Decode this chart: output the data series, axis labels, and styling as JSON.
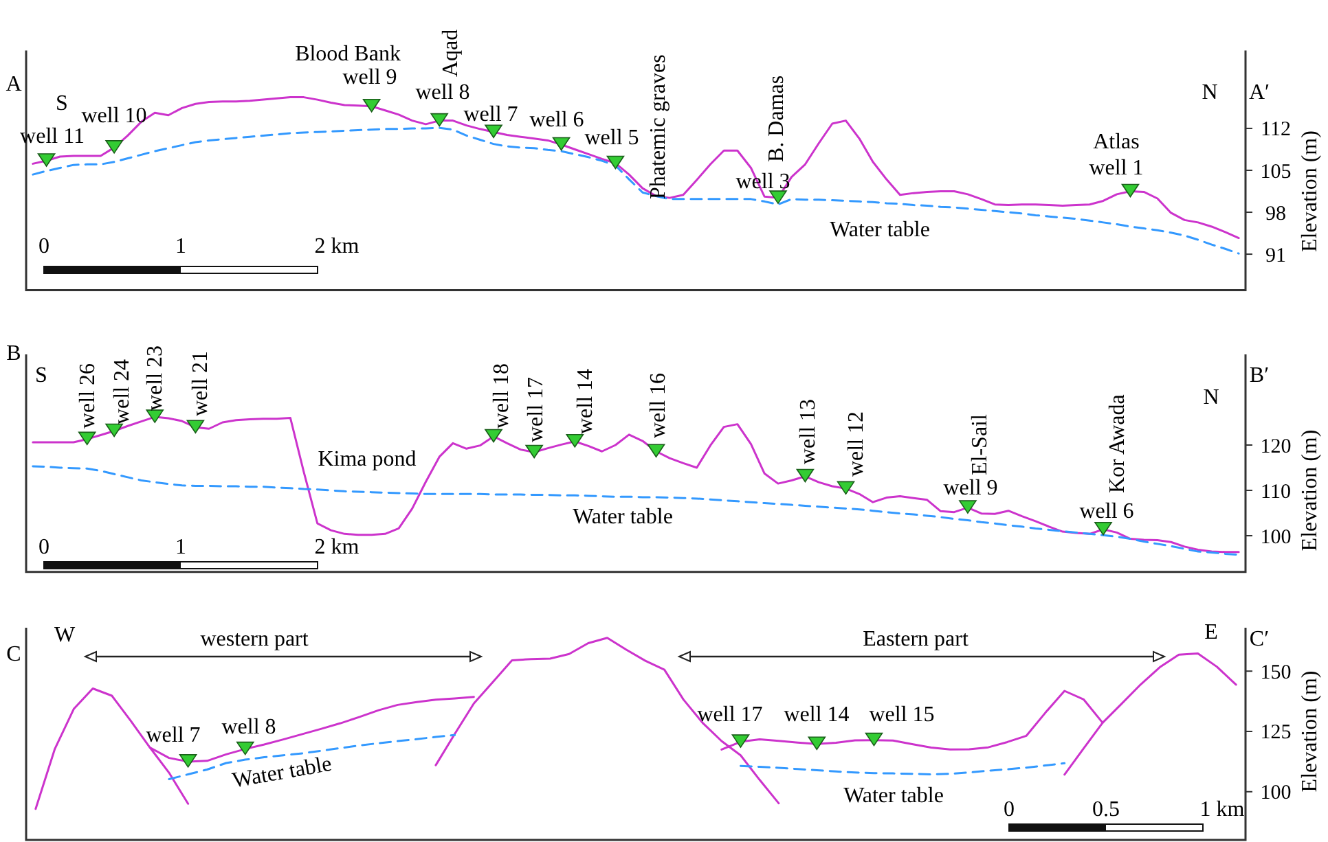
{
  "chart_data": [
    {
      "type": "line",
      "categories": [
        null,
        null,
        null,
        null,
        null,
        null,
        null,
        null,
        null,
        null,
        null,
        null,
        null,
        null,
        null,
        null,
        null,
        null,
        null,
        null,
        null,
        null,
        null,
        null,
        null,
        null,
        null,
        null,
        null,
        null,
        null,
        null,
        null,
        null,
        null,
        null,
        null,
        null,
        null,
        null,
        null,
        null,
        null,
        null,
        null,
        null,
        null,
        null,
        null,
        null,
        null,
        null,
        null,
        null,
        null,
        null,
        null,
        null,
        null,
        null,
        null,
        null,
        null,
        null,
        null,
        null,
        null,
        null,
        null,
        null,
        null,
        null,
        null,
        null,
        null,
        null,
        null,
        null,
        null,
        null,
        null,
        null,
        null,
        null,
        null,
        null,
        null,
        null,
        null,
        null
      ],
      "ylim": [
        85,
        125
      ],
      "yticks": [
        91,
        98,
        105,
        112
      ],
      "ylabel": "Elevation (m)",
      "tick_labels": "y",
      "series": [
        {
          "type": "line",
          "color": "#cc33cc",
          "line_style": "solid",
          "values": [
            106.1,
            106.6,
            107.3,
            107.4,
            107.4,
            107.4,
            108.8,
            110.8,
            113.1,
            114.6,
            114.2,
            115.4,
            116.1,
            116.4,
            116.5,
            116.5,
            116.6,
            116.8,
            117.0,
            117.2,
            117.2,
            116.8,
            116.3,
            115.9,
            115.8,
            115.7,
            115.0,
            114.3,
            113.3,
            112.7,
            113.3,
            113.3,
            112.5,
            111.9,
            111.4,
            110.9,
            110.6,
            110.3,
            110.0,
            109.3,
            108.5,
            107.7,
            106.9,
            106.2,
            104.3,
            102.0,
            100.7,
            100.4,
            100.9,
            103.4,
            106.0,
            108.3,
            108.3,
            105.4,
            100.6,
            100.4,
            103.9,
            106.0,
            109.5,
            112.8,
            113.3,
            110.3,
            106.4,
            103.5,
            100.9,
            101.2,
            101.4,
            101.5,
            101.5,
            101.0,
            100.2,
            99.3,
            99.2,
            99.3,
            99.3,
            99.2,
            99.1,
            99.2,
            99.3,
            99.9,
            101.0,
            101.5,
            101.4,
            100.3,
            97.9,
            96.7,
            96.3,
            95.6,
            94.7,
            93.7
          ]
        },
        {
          "type": "line",
          "color": "#3399ff",
          "line_style": "dashed",
          "values": [
            104.3,
            104.9,
            105.4,
            105.9,
            106.0,
            106.0,
            106.4,
            107.0,
            107.6,
            108.2,
            108.7,
            109.2,
            109.7,
            110.0,
            110.2,
            110.4,
            110.6,
            110.8,
            111.0,
            111.2,
            111.3,
            111.4,
            111.5,
            111.6,
            111.7,
            111.8,
            111.9,
            111.9,
            112.0,
            112.0,
            112.1,
            111.8,
            110.8,
            110.1,
            109.4,
            109.0,
            108.8,
            108.7,
            108.4,
            108.2,
            107.7,
            107.2,
            106.6,
            105.8,
            103.5,
            101.3,
            100.7,
            100.2,
            100.2,
            100.2,
            100.2,
            100.2,
            100.2,
            100.2,
            99.8,
            99.3,
            100.2,
            100.1,
            100.1,
            100.0,
            99.9,
            99.8,
            99.7,
            99.5,
            99.4,
            99.2,
            99.1,
            98.9,
            98.8,
            98.6,
            98.4,
            98.2,
            98.0,
            97.8,
            97.5,
            97.3,
            97.1,
            96.9,
            96.6,
            96.3,
            96.0,
            95.6,
            95.3,
            95.0,
            94.6,
            94.1,
            93.4,
            92.6,
            91.9,
            91.1
          ]
        },
        {
          "type": "scatter",
          "color": "#33cc33",
          "marker": "triangle",
          "values": [
            null,
            106.6,
            null,
            null,
            null,
            null,
            108.8,
            null,
            null,
            null,
            null,
            null,
            null,
            null,
            null,
            null,
            null,
            null,
            null,
            null,
            null,
            null,
            null,
            null,
            null,
            115.7,
            null,
            null,
            null,
            null,
            113.3,
            null,
            null,
            null,
            111.4,
            null,
            null,
            null,
            null,
            109.3,
            null,
            null,
            null,
            106.2,
            null,
            null,
            null,
            null,
            null,
            null,
            null,
            null,
            null,
            null,
            null,
            100.4,
            null,
            null,
            null,
            null,
            null,
            null,
            null,
            null,
            null,
            null,
            null,
            null,
            null,
            null,
            null,
            null,
            null,
            null,
            null,
            null,
            null,
            null,
            null,
            null,
            null,
            101.5,
            null,
            null,
            null,
            null,
            null,
            null,
            null,
            null
          ]
        }
      ],
      "annotations": [
        "A",
        "S",
        "well 10",
        "well 11",
        "Blood Bank",
        "well 9",
        "Aqad",
        "well 8",
        "well 7",
        "well 6",
        "well 5",
        "Phatemic graves",
        "B. Damas",
        "well 3",
        "Water table",
        "Atlas",
        "well 1",
        "N",
        "A′",
        "0",
        "1",
        "2 km"
      ]
    },
    {
      "type": "line",
      "categories": [
        null,
        null,
        null,
        null,
        null,
        null,
        null,
        null,
        null,
        null,
        null,
        null,
        null,
        null,
        null,
        null,
        null,
        null,
        null,
        null,
        null,
        null,
        null,
        null,
        null,
        null,
        null,
        null,
        null,
        null,
        null,
        null,
        null,
        null,
        null,
        null,
        null,
        null,
        null,
        null,
        null,
        null,
        null,
        null,
        null,
        null,
        null,
        null,
        null,
        null,
        null,
        null,
        null,
        null,
        null,
        null,
        null,
        null,
        null,
        null,
        null,
        null,
        null,
        null,
        null,
        null,
        null,
        null,
        null,
        null,
        null,
        null,
        null,
        null,
        null,
        null,
        null,
        null,
        null,
        null,
        null,
        null,
        null,
        null,
        null,
        null,
        null,
        null,
        null,
        null
      ],
      "ylim": [
        92,
        140
      ],
      "yticks": [
        100,
        110,
        120
      ],
      "ylabel": "Elevation (m)",
      "tick_labels": "y",
      "series": [
        {
          "type": "line",
          "color": "#cc33cc",
          "line_style": "solid",
          "values": [
            120.6,
            120.6,
            120.6,
            120.6,
            121.3,
            122.2,
            123.1,
            124.2,
            125.2,
            126.2,
            125.9,
            125.3,
            123.9,
            123.6,
            125.0,
            125.5,
            125.7,
            125.8,
            125.8,
            126.0,
            114.0,
            102.7,
            101.2,
            100.4,
            100.2,
            100.2,
            100.4,
            101.6,
            106.0,
            111.9,
            117.4,
            120.4,
            119.2,
            119.9,
            121.9,
            120.4,
            119.0,
            118.4,
            119.3,
            120.1,
            120.8,
            119.8,
            118.6,
            120.0,
            122.3,
            120.9,
            118.6,
            117.1,
            116.0,
            115.0,
            119.9,
            124.0,
            124.6,
            120.2,
            113.7,
            111.5,
            112.2,
            113.1,
            111.8,
            110.9,
            110.4,
            109.2,
            107.4,
            108.4,
            108.7,
            108.3,
            107.9,
            105.4,
            105.2,
            106.2,
            104.9,
            104.8,
            105.5,
            104.3,
            103.2,
            102.0,
            100.9,
            100.6,
            100.4,
            101.4,
            100.7,
            99.3,
            99.1,
            99.0,
            98.6,
            97.6,
            96.9,
            96.5,
            96.4,
            96.4
          ]
        },
        {
          "type": "line",
          "color": "#3399ff",
          "line_style": "dashed",
          "values": [
            115.3,
            115.2,
            115.0,
            114.9,
            114.8,
            114.3,
            113.6,
            112.9,
            112.2,
            111.8,
            111.4,
            111.1,
            111.0,
            111.0,
            110.9,
            110.9,
            110.8,
            110.8,
            110.6,
            110.5,
            110.3,
            110.2,
            110.0,
            109.8,
            109.7,
            109.6,
            109.5,
            109.4,
            109.3,
            109.2,
            109.2,
            109.2,
            109.2,
            109.2,
            109.1,
            109.1,
            109.1,
            109.0,
            109.0,
            108.9,
            108.9,
            108.8,
            108.7,
            108.6,
            108.6,
            108.5,
            108.5,
            108.4,
            108.3,
            108.2,
            108.0,
            107.8,
            107.6,
            107.4,
            107.2,
            107.0,
            106.8,
            106.6,
            106.4,
            106.2,
            106.0,
            105.8,
            105.5,
            105.2,
            104.9,
            104.7,
            104.4,
            104.1,
            103.7,
            103.4,
            103.0,
            102.7,
            102.3,
            102.0,
            101.6,
            101.3,
            101.0,
            100.7,
            100.4,
            100.1,
            99.8,
            99.3,
            98.7,
            98.2,
            97.7,
            97.1,
            96.5,
            96.3,
            96.0,
            95.8
          ]
        },
        {
          "type": "scatter",
          "color": "#33cc33",
          "marker": "triangle",
          "values": [
            null,
            null,
            null,
            null,
            121.3,
            null,
            123.1,
            null,
            null,
            126.2,
            null,
            null,
            123.9,
            null,
            null,
            null,
            null,
            null,
            null,
            null,
            null,
            null,
            null,
            null,
            null,
            null,
            null,
            null,
            null,
            null,
            null,
            null,
            null,
            null,
            121.9,
            null,
            null,
            118.4,
            null,
            null,
            120.8,
            null,
            null,
            null,
            null,
            null,
            118.6,
            null,
            null,
            null,
            null,
            null,
            null,
            null,
            null,
            null,
            null,
            113.1,
            null,
            null,
            110.4,
            null,
            null,
            null,
            null,
            null,
            null,
            null,
            null,
            106.2,
            null,
            null,
            null,
            null,
            null,
            null,
            null,
            null,
            null,
            101.4,
            null,
            null,
            null,
            null,
            null,
            null,
            null,
            null,
            null,
            null
          ]
        }
      ],
      "annotations": [
        "B",
        "S",
        "well 26",
        "well 24",
        "well 23",
        "well 21",
        "Kima pond",
        "well 18",
        "well 17",
        "well 14",
        "well 16",
        "well 13",
        "well 12",
        "Water table",
        "El-Sail",
        "well 9",
        "Kor Awada",
        "well 6",
        "N",
        "B′",
        "0",
        "1",
        "2 km"
      ]
    },
    {
      "type": "line",
      "categories": [
        null,
        null,
        null,
        null,
        null,
        null,
        null,
        null,
        null,
        null,
        null,
        null,
        null,
        null,
        null,
        null,
        null,
        null,
        null,
        null,
        null,
        null,
        null,
        null,
        null,
        null,
        null,
        null,
        null,
        null,
        null,
        null,
        null,
        null,
        null,
        null,
        null,
        null,
        null,
        null,
        null,
        null,
        null,
        null,
        null,
        null,
        null,
        null,
        null,
        null,
        null,
        null,
        null,
        null,
        null,
        null,
        null,
        null,
        null,
        null,
        null,
        null,
        null,
        null
      ],
      "ylim": [
        80,
        168
      ],
      "yticks": [
        100,
        125,
        150
      ],
      "ylabel": "Elevation (m)",
      "tick_labels": "y",
      "series": [
        {
          "type": "line",
          "color": "#cc33cc",
          "line_style": "solid",
          "values": [
            92.9,
            117.6,
            134.3,
            142.8,
            139.8,
            129.3,
            118.3,
            114.0,
            112.5,
            112.8,
            115.5,
            117.7,
            119.6,
            121.7,
            123.9,
            126.1,
            128.4,
            131.0,
            133.8,
            136.0,
            137.2,
            138.2,
            138.7,
            139.3,
            null,
            null,
            null,
            null,
            null,
            null,
            null,
            null,
            null,
            null,
            null,
            null,
            null,
            null,
            null,
            null,
            null,
            null,
            null,
            null,
            null,
            null,
            null,
            null,
            null,
            null,
            null,
            null,
            null,
            null,
            null,
            null,
            null,
            null,
            null,
            null,
            null,
            null,
            null,
            null
          ]
        },
        {
          "type": "line",
          "color": "#cc33cc",
          "line_style": "solid",
          "values": [
            null,
            null,
            null,
            null,
            null,
            null,
            118.3,
            107.9,
            95.0,
            null,
            null,
            null,
            null,
            null,
            null,
            null,
            null,
            null,
            null,
            null,
            null,
            null,
            null,
            null,
            null,
            null,
            null,
            null,
            null,
            null,
            null,
            null,
            null,
            null,
            null,
            null,
            null,
            null,
            null,
            null,
            null,
            null,
            null,
            null,
            null,
            null,
            null,
            null,
            null,
            null,
            null,
            null,
            null,
            null,
            null,
            null,
            null,
            null,
            null,
            null,
            null,
            null,
            null,
            null
          ]
        },
        {
          "type": "line",
          "color": "#cc33cc",
          "line_style": "solid",
          "values": [
            null,
            null,
            null,
            null,
            null,
            null,
            null,
            null,
            null,
            null,
            null,
            null,
            null,
            null,
            null,
            null,
            null,
            null,
            null,
            null,
            null,
            111.0,
            124.0,
            136.6,
            145.5,
            154.5,
            155.0,
            155.2,
            157.1,
            161.6,
            163.8,
            158.9,
            154.3,
            150.6,
            138.2,
            128.6,
            121.0,
            115.1,
            104.9,
            95.2,
            null,
            null,
            null,
            null,
            null,
            null,
            null,
            null,
            null,
            null,
            null,
            null,
            null,
            null,
            null,
            null,
            null,
            null,
            null,
            null,
            null,
            null,
            null,
            null
          ]
        },
        {
          "type": "line",
          "color": "#cc33cc",
          "line_style": "solid",
          "values": [
            null,
            null,
            null,
            null,
            null,
            null,
            null,
            null,
            null,
            null,
            null,
            null,
            null,
            null,
            null,
            null,
            null,
            null,
            null,
            null,
            null,
            null,
            null,
            null,
            null,
            null,
            null,
            null,
            null,
            null,
            null,
            null,
            null,
            null,
            null,
            null,
            117.5,
            120.7,
            121.7,
            121.1,
            120.4,
            119.8,
            120.3,
            121.3,
            121.4,
            121.2,
            119.7,
            118.3,
            117.5,
            117.6,
            118.4,
            120.6,
            123.2,
            132.8,
            141.8,
            138.3,
            128.6,
            null,
            null,
            null,
            null,
            null,
            null,
            null
          ]
        },
        {
          "type": "line",
          "color": "#cc33cc",
          "line_style": "solid",
          "values": [
            null,
            null,
            null,
            null,
            null,
            null,
            null,
            null,
            null,
            null,
            null,
            null,
            null,
            null,
            null,
            null,
            null,
            null,
            null,
            null,
            null,
            null,
            null,
            null,
            null,
            null,
            null,
            null,
            null,
            null,
            null,
            null,
            null,
            null,
            null,
            null,
            null,
            null,
            null,
            null,
            null,
            null,
            null,
            null,
            null,
            null,
            null,
            null,
            null,
            null,
            null,
            null,
            null,
            null,
            107.1,
            117.9,
            128.6,
            136.5,
            144.5,
            151.6,
            156.8,
            157.3,
            151.8,
            144.4
          ]
        },
        {
          "type": "line",
          "color": "#3399ff",
          "line_style": "dashed",
          "values": [
            null,
            null,
            null,
            null,
            null,
            null,
            null,
            105.2,
            107.2,
            109.2,
            111.9,
            113.3,
            114.3,
            115.1,
            115.9,
            117.0,
            118.1,
            119.2,
            120.1,
            121.0,
            121.8,
            122.7,
            123.5,
            null,
            null,
            null,
            null,
            null,
            null,
            null,
            null,
            null,
            null,
            null,
            null,
            null,
            null,
            null,
            null,
            null,
            null,
            null,
            null,
            null,
            null,
            null,
            null,
            null,
            null,
            null,
            null,
            null,
            null,
            null,
            null,
            null,
            null,
            null,
            null,
            null,
            null,
            null,
            null,
            null
          ]
        },
        {
          "type": "line",
          "color": "#3399ff",
          "line_style": "dashed",
          "values": [
            null,
            null,
            null,
            null,
            null,
            null,
            null,
            null,
            null,
            null,
            null,
            null,
            null,
            null,
            null,
            null,
            null,
            null,
            null,
            null,
            null,
            null,
            null,
            null,
            null,
            null,
            null,
            null,
            null,
            null,
            null,
            null,
            null,
            null,
            null,
            null,
            null,
            110.7,
            110.3,
            109.9,
            109.4,
            108.9,
            108.4,
            108.0,
            107.7,
            107.6,
            107.4,
            107.2,
            107.4,
            108.0,
            108.7,
            109.3,
            110.0,
            110.9,
            111.8,
            null,
            null,
            null,
            null,
            null,
            null,
            null,
            null,
            null
          ]
        },
        {
          "type": "scatter",
          "color": "#33cc33",
          "marker": "triangle",
          "values": [
            null,
            null,
            null,
            null,
            null,
            null,
            null,
            null,
            112.5,
            null,
            null,
            117.7,
            null,
            null,
            null,
            null,
            null,
            null,
            null,
            null,
            null,
            null,
            null,
            null,
            null,
            null,
            null,
            null,
            null,
            null,
            null,
            null,
            null,
            null,
            null,
            null,
            null,
            120.7,
            null,
            null,
            null,
            119.8,
            null,
            null,
            121.4,
            null,
            null,
            null,
            null,
            null,
            null,
            null,
            null,
            null,
            null,
            null,
            null,
            null,
            null,
            null,
            null,
            null,
            null,
            null
          ]
        }
      ],
      "annotations": [
        "C",
        "W",
        "western part",
        "E",
        "C′",
        "Eastern part",
        "well 7",
        "well 8",
        "Water table",
        "well 17",
        "well 14",
        "well 15",
        "Water table",
        "0",
        "0.5",
        "1 km"
      ]
    }
  ]
}
